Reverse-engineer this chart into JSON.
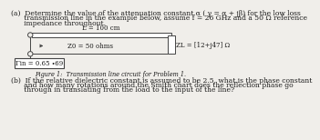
{
  "title_a": "(a)  Determine the value of the attenuation constant α ( γ = α + jβ) for the low loss",
  "title_a2": "      transmission line in the example below, assume f = 26 GHz and a 50 Ω reference",
  "title_a3": "      impedance throughout.",
  "L_label": "L = 100 cm",
  "Z0_label": "Z0 = 50 ohms",
  "ZL_label": "ZL = [12+j47] Ω",
  "gamma_label": "Γin = 0.65 ∙69",
  "fig_caption": "Figure 1:  Transmission line circuit for Problem 1.",
  "title_b": "(b)  If the relative dielectric constant is assumed to be 2.5, what is the phase constant",
  "title_b2": "      and how many rotations around the Smith chart does the reflection phase go",
  "title_b3": "      through in translating from the load to the input of the line?",
  "bg_color": "#f0eeea",
  "text_color": "#1a1a1a",
  "line_color": "#444444",
  "box_fill": "#e8e6e0"
}
